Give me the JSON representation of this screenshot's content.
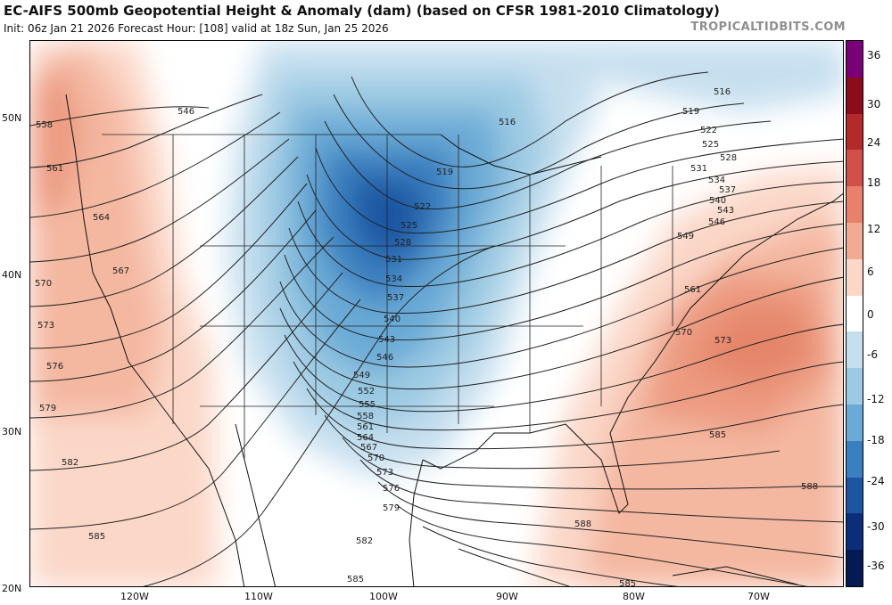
{
  "header": {
    "title": "EC-AIFS 500mb Geopotential Height & Anomaly (dam) (based on CFSR 1981-2010 Climatology)",
    "subtitle": "Init: 06z Jan 21 2026   Forecast Hour: [108]   valid at 18z Sun, Jan 25 2026",
    "brand": "TROPICALTIDBITS.COM"
  },
  "axes": {
    "latitudes": [
      "50N",
      "40N",
      "30N",
      "20N"
    ],
    "longitudes": [
      "120W",
      "110W",
      "100W",
      "90W",
      "80W",
      "70W"
    ]
  },
  "colorbar": {
    "labels": [
      "36",
      "30",
      "24",
      "18",
      "12",
      "6",
      "0",
      "-6",
      "-12",
      "-18",
      "-24",
      "-30",
      "-36"
    ],
    "colors": [
      "#7a0078",
      "#8b0d1c",
      "#b22a2a",
      "#d2504a",
      "#e8806a",
      "#f2ab92",
      "#fbd7c8",
      "#ffffff",
      "#c6dfef",
      "#9ccae3",
      "#6aaad6",
      "#3a80c0",
      "#1c56a3",
      "#0c2e7a",
      "#041a52"
    ]
  },
  "contours": {
    "color": "#222222",
    "height_labels": [
      "546",
      "558",
      "561",
      "564",
      "567",
      "570",
      "573",
      "576",
      "579",
      "582",
      "585",
      "516",
      "519",
      "522",
      "525",
      "528",
      "531",
      "534",
      "537",
      "540",
      "543",
      "546",
      "549",
      "552",
      "555",
      "558",
      "561",
      "564",
      "567",
      "570",
      "573",
      "576",
      "579",
      "582",
      "585",
      "516",
      "519",
      "522",
      "525",
      "528",
      "531",
      "534",
      "537",
      "540",
      "543",
      "546",
      "549",
      "561",
      "570",
      "573",
      "585",
      "588",
      "588",
      "585"
    ]
  }
}
